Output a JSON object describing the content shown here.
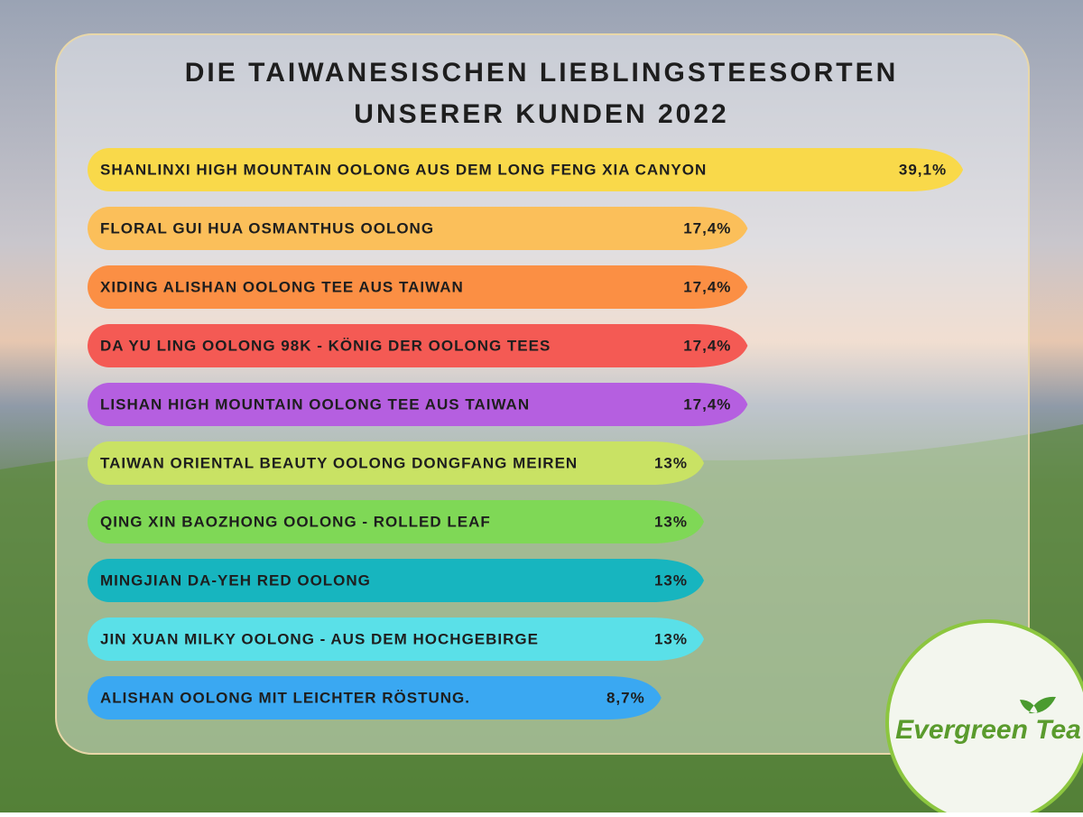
{
  "chart_data": {
    "type": "bar",
    "orientation": "horizontal",
    "title": [
      "DIE TAIWANESISCHEN LIEBLINGSTEESORTEN",
      "UNSERER KUNDEN 2022"
    ],
    "categories": [
      "SHANLINXI HIGH MOUNTAIN OOLONG AUS DEM LONG FENG XIA CANYON",
      "FLORAL GUI HUA OSMANTHUS OOLONG",
      "XIDING ALISHAN OOLONG TEE AUS TAIWAN",
      "DA YU LING OOLONG 98K - KÖNIG DER OOLONG TEES",
      "LISHAN HIGH MOUNTAIN OOLONG TEE AUS TAIWAN",
      "TAIWAN ORIENTAL BEAUTY OOLONG DONGFANG MEIREN",
      "QING XIN BAOZHONG OOLONG - ROLLED LEAF",
      "MINGJIAN DA-YEH RED OOLONG",
      "JIN XUAN MILKY OOLONG - AUS DEM HOCHGEBIRGE",
      "ALISHAN OOLONG MIT LEICHTER RÖSTUNG."
    ],
    "values": [
      39.1,
      17.4,
      17.4,
      17.4,
      17.4,
      13,
      13,
      13,
      13,
      8.7
    ],
    "value_labels": [
      "39,1%",
      "17,4%",
      "17,4%",
      "17,4%",
      "17,4%",
      "13%",
      "13%",
      "13%",
      "13%",
      "8,7%"
    ],
    "colors": [
      "#f9d94a",
      "#fbbf5a",
      "#fb8f44",
      "#f45a54",
      "#b55fe0",
      "#c9e264",
      "#7fd856",
      "#17b5bf",
      "#5ae0e8",
      "#3aa8f2"
    ]
  },
  "brand": "Evergreen Tea"
}
